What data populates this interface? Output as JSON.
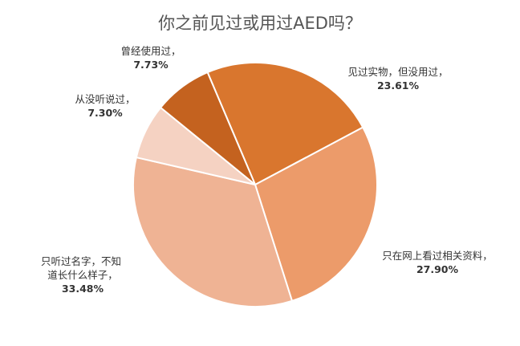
{
  "chart_data": {
    "type": "pie",
    "title": "你之前见过或用过AED吗？",
    "slices": [
      {
        "label": "见过实物，但没用过，",
        "value": 23.61,
        "value_label": "23.61%",
        "color": "#d9762e"
      },
      {
        "label": "只在网上看过相关资料，",
        "value": 27.9,
        "value_label": "27.90%",
        "color": "#ec9b6a"
      },
      {
        "label": "只听过名字，不知道长什么样子，",
        "value": 33.48,
        "value_label": "33.48%",
        "color": "#efb394"
      },
      {
        "label": "从没听说过，",
        "value": 7.3,
        "value_label": "7.30%",
        "color": "#f5d2c2"
      },
      {
        "label": "曾经使用过，",
        "value": 7.73,
        "value_label": "7.73%",
        "color": "#c4621f"
      }
    ],
    "legend": "none"
  }
}
